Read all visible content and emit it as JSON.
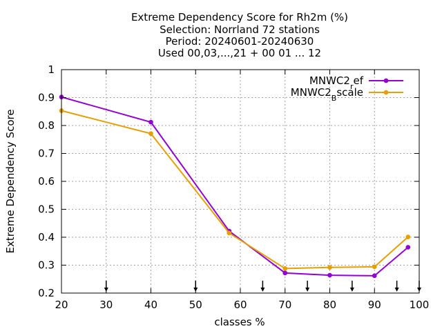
{
  "chart_data": {
    "type": "line",
    "title_lines": [
      "Extreme Dependency Score  for Rh2m (%)",
      "Selection: Norrland     72 stations",
      "Period: 20240601-20240630",
      "Used 00,03,...,21 + 00 01 ... 12"
    ],
    "xlabel": "classes %",
    "ylabel": "Extreme Dependency Score",
    "xlim": [
      20,
      100
    ],
    "ylim": [
      0.2,
      1.0
    ],
    "xticks": [
      20,
      30,
      40,
      50,
      60,
      70,
      80,
      90,
      100
    ],
    "xtick_labels": [
      "20",
      "30",
      "40",
      "50",
      "60",
      "70",
      "80",
      "90",
      "100"
    ],
    "yticks": [
      0.2,
      0.3,
      0.4,
      0.5,
      0.6,
      0.7,
      0.8,
      0.9,
      1.0
    ],
    "ytick_labels": [
      "0.2",
      "0.3",
      "0.4",
      "0.5",
      "0.6",
      "0.7",
      "0.8",
      "0.9",
      "1"
    ],
    "grid": true,
    "legend_position": "top-right",
    "series": [
      {
        "name": "MNWC2_ref",
        "legend_base": "MNWC2",
        "legend_sub": "r",
        "legend_rest": "ef",
        "color": "#9400d3",
        "x": [
          20,
          40,
          57.5,
          70,
          80,
          90,
          97.5
        ],
        "y": [
          0.902,
          0.812,
          0.422,
          0.272,
          0.264,
          0.262,
          0.364
        ]
      },
      {
        "name": "MNWC2_Bscale",
        "legend_base": "MNWC2",
        "legend_sub": "B",
        "legend_rest": "scale",
        "color": "#e69f00",
        "x": [
          20,
          40,
          57.5,
          70,
          80,
          90,
          97.5
        ],
        "y": [
          0.853,
          0.771,
          0.415,
          0.288,
          0.292,
          0.294,
          0.401
        ]
      }
    ],
    "threshold_arrows_x": [
      30,
      50,
      65,
      75,
      85,
      95,
      100
    ]
  }
}
